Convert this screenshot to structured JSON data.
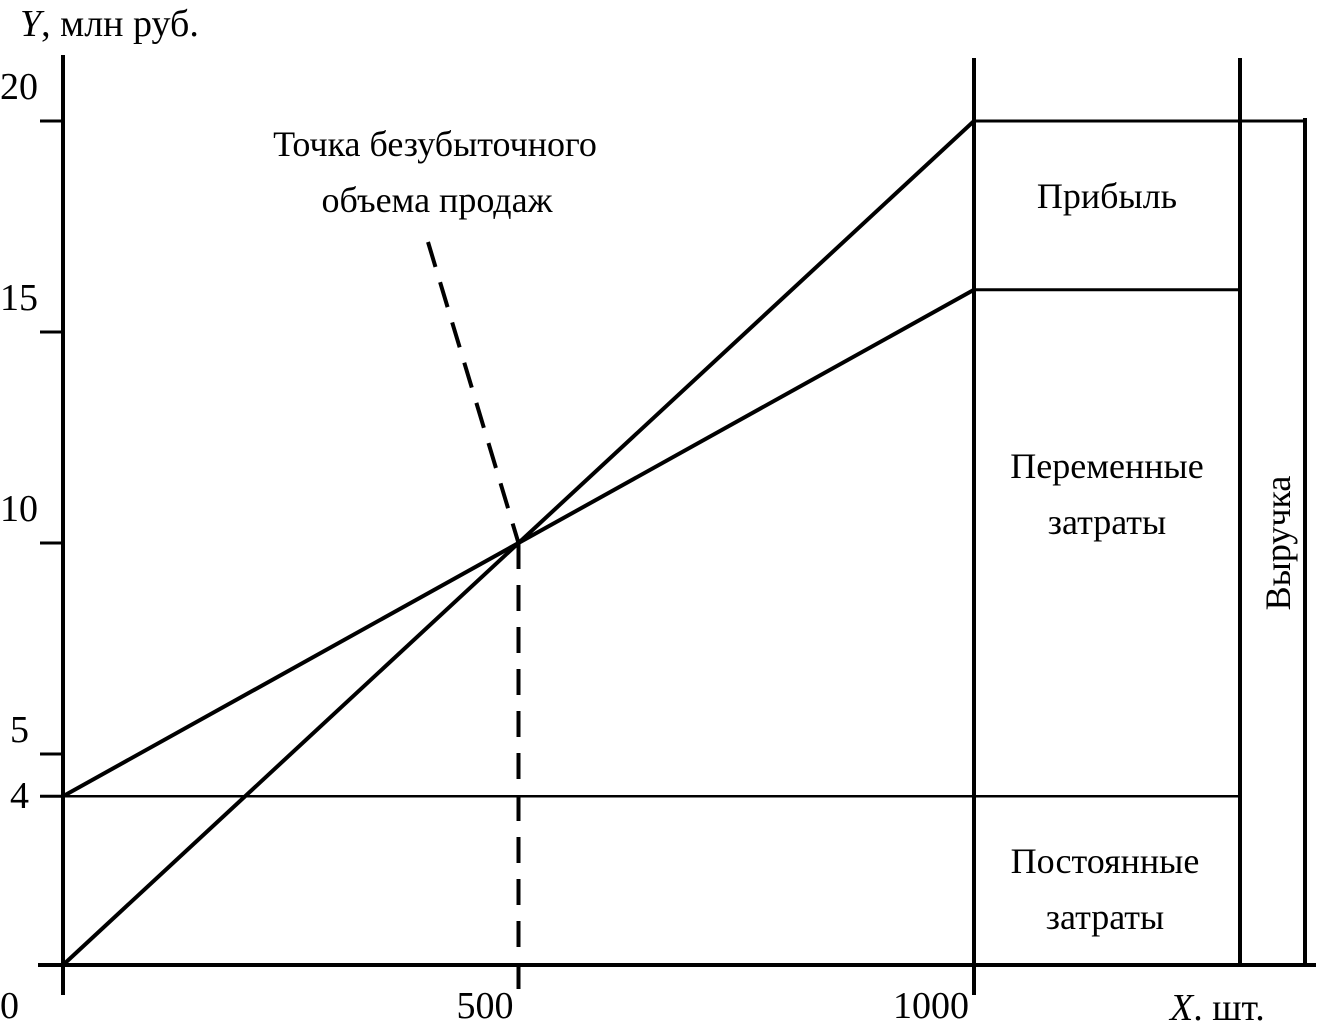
{
  "chart_data": {
    "type": "line",
    "title": "",
    "ylabel_var": "Y",
    "ylabel_unit": ", млн руб.",
    "xlabel_var": "X",
    "xlabel_unit": ". шт.",
    "origin_label": "0",
    "xlim": [
      0,
      1300
    ],
    "ylim": [
      0,
      20
    ],
    "x_ticks": [
      {
        "value": 500,
        "label": "500"
      },
      {
        "value": 1000,
        "label": "1000"
      }
    ],
    "y_ticks": [
      {
        "value": 4,
        "label": "4"
      },
      {
        "value": 5,
        "label": "5"
      },
      {
        "value": 10,
        "label": "10"
      },
      {
        "value": 15,
        "label": "15"
      },
      {
        "value": 20,
        "label": "20"
      }
    ],
    "series": [
      {
        "key": "revenue",
        "points": [
          [
            0,
            0
          ],
          [
            1000,
            20
          ]
        ]
      },
      {
        "key": "total_costs",
        "points": [
          [
            0,
            4
          ],
          [
            1000,
            16
          ]
        ]
      },
      {
        "key": "fixed_costs",
        "points": [
          [
            0,
            4
          ],
          [
            1300,
            4
          ]
        ]
      }
    ],
    "break_even": {
      "x": 500,
      "y": 10,
      "label_line1": "Точка безубыточного",
      "label_line2": "объема продаж"
    },
    "segments": {
      "profit": "Прибыль",
      "variable_line1": "Переменные",
      "variable_line2": "затраты",
      "fixed_line1": "Постоянные",
      "fixed_line2": "затраты",
      "revenue": "Выручка"
    },
    "grid": false
  }
}
